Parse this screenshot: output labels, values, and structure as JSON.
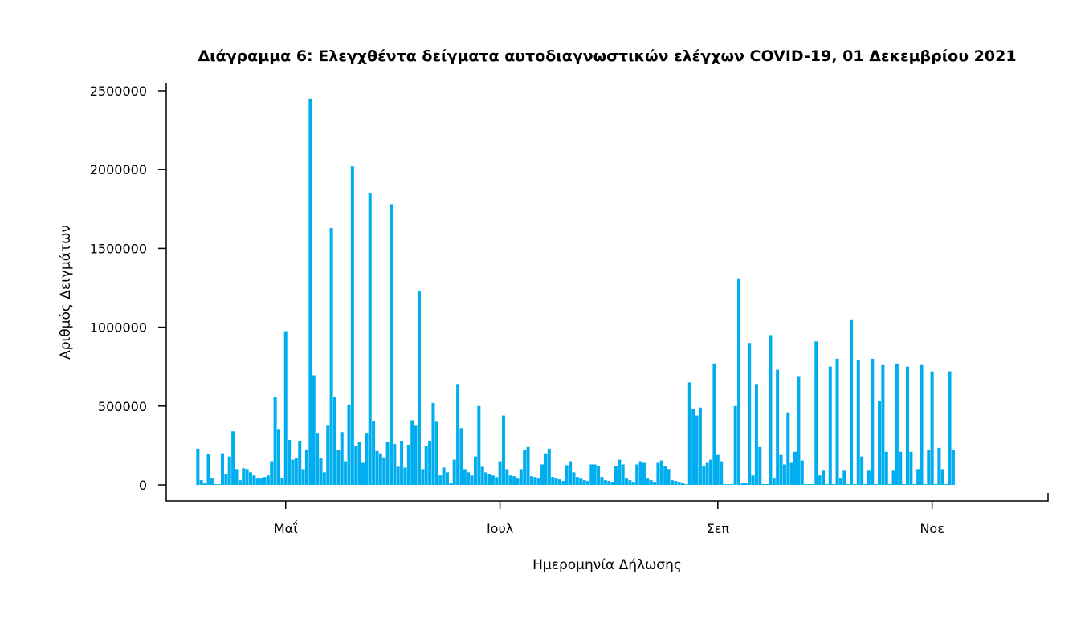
{
  "chart_data": {
    "type": "bar",
    "title": "Διάγραμμα 6: Ελεγχθέντα δείγματα αυτοδιαγνωστικών ελέγχων COVID-19, 01 Δεκεμβρίου 2021",
    "xlabel": "Ημερομηνία Δήλωσης",
    "ylabel": "Αριθμός Δειγμάτων",
    "color": "#00AEEF",
    "ylim": [
      0,
      2500000
    ],
    "y_ticks": [
      {
        "value": 0,
        "label": "0"
      },
      {
        "value": 500000,
        "label": "500000"
      },
      {
        "value": 1000000,
        "label": "1000000"
      },
      {
        "value": 1500000,
        "label": "1500000"
      },
      {
        "value": 2000000,
        "label": "2000000"
      },
      {
        "value": 2500000,
        "label": "2500000"
      }
    ],
    "x_ticks": [
      {
        "index": 25,
        "label": "Μαΐ"
      },
      {
        "index": 86,
        "label": "Ιουλ"
      },
      {
        "index": 148,
        "label": "Σεπ"
      },
      {
        "index": 209,
        "label": "Νοε"
      }
    ],
    "x_range": [
      -9,
      242
    ],
    "values": [
      230000,
      30000,
      10000,
      195000,
      45000,
      5000,
      5000,
      200000,
      70000,
      180000,
      340000,
      100000,
      30000,
      105000,
      100000,
      80000,
      60000,
      40000,
      40000,
      50000,
      60000,
      150000,
      560000,
      355000,
      45000,
      975000,
      285000,
      160000,
      170000,
      280000,
      100000,
      225000,
      2450000,
      695000,
      330000,
      170000,
      80000,
      380000,
      1630000,
      560000,
      220000,
      335000,
      150000,
      510000,
      2020000,
      245000,
      270000,
      140000,
      330000,
      1850000,
      405000,
      215000,
      200000,
      175000,
      270000,
      1780000,
      260000,
      115000,
      280000,
      110000,
      255000,
      410000,
      380000,
      1230000,
      100000,
      245000,
      280000,
      520000,
      400000,
      60000,
      110000,
      80000,
      10000,
      160000,
      640000,
      360000,
      100000,
      80000,
      60000,
      180000,
      500000,
      115000,
      80000,
      70000,
      60000,
      50000,
      150000,
      440000,
      100000,
      60000,
      55000,
      40000,
      100000,
      220000,
      240000,
      55000,
      50000,
      40000,
      130000,
      200000,
      230000,
      50000,
      40000,
      35000,
      25000,
      125000,
      150000,
      80000,
      50000,
      40000,
      30000,
      25000,
      130000,
      130000,
      120000,
      50000,
      30000,
      25000,
      20000,
      120000,
      160000,
      130000,
      40000,
      30000,
      20000,
      130000,
      150000,
      140000,
      40000,
      30000,
      20000,
      140000,
      155000,
      120000,
      100000,
      30000,
      25000,
      20000,
      10000,
      5000,
      650000,
      480000,
      440000,
      490000,
      120000,
      140000,
      160000,
      770000,
      190000,
      150000,
      5000,
      5000,
      5000,
      500000,
      1310000,
      10000,
      10000,
      900000,
      60000,
      640000,
      240000,
      5000,
      5000,
      950000,
      40000,
      730000,
      190000,
      130000,
      460000,
      140000,
      210000,
      690000,
      155000,
      5000,
      5000,
      5000,
      910000,
      60000,
      90000,
      5000,
      750000,
      5000,
      800000,
      40000,
      90000,
      5000,
      1050000,
      5000,
      790000,
      180000,
      5000,
      90000,
      800000,
      5000,
      530000,
      760000,
      210000,
      5000,
      90000,
      770000,
      210000,
      5000,
      750000,
      210000,
      5000,
      100000,
      760000,
      5000,
      220000,
      720000,
      5000,
      235000,
      100000,
      5000,
      720000,
      220000
    ]
  }
}
